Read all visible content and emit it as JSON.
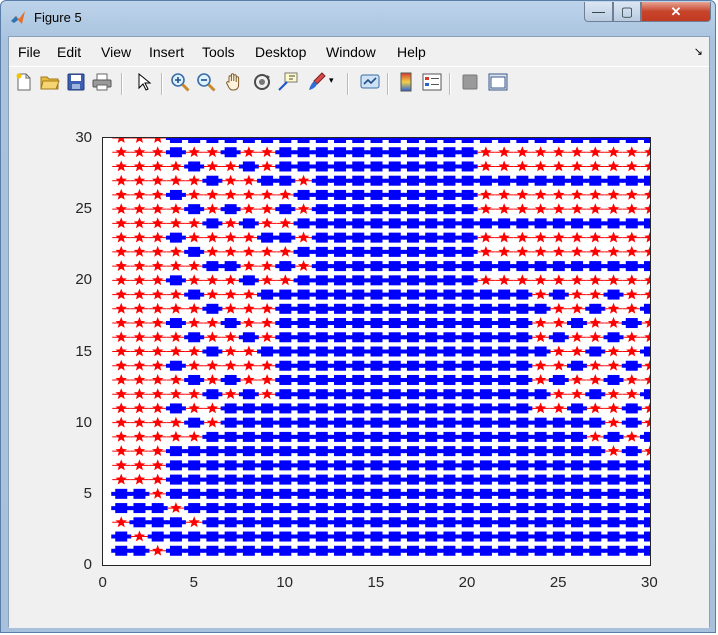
{
  "window": {
    "title": "Figure 5",
    "minimize_label": "—",
    "maximize_label": "▢",
    "close_label": "✕"
  },
  "menu": {
    "items": [
      {
        "label": "File"
      },
      {
        "label": "Edit"
      },
      {
        "label": "View"
      },
      {
        "label": "Insert"
      },
      {
        "label": "Tools"
      },
      {
        "label": "Desktop"
      },
      {
        "label": "Window"
      },
      {
        "label": "Help"
      }
    ],
    "dock_glyph": "↘"
  },
  "toolbar": {
    "buttons": [
      "new-figure-icon",
      "open-file-icon",
      "save-icon",
      "print-icon",
      "arrow-pointer-icon",
      "zoom-in-icon",
      "zoom-out-icon",
      "pan-hand-icon",
      "rotate-3d-icon",
      "data-cursor-icon",
      "brush-icon",
      "link-plot-icon",
      "colorbar-icon",
      "legend-icon",
      "hide-plot-tools-icon",
      "show-plot-tools-icon"
    ]
  },
  "chart_data": {
    "type": "scatter",
    "xlim": [
      0,
      30
    ],
    "ylim": [
      0,
      30
    ],
    "x_ticks": [
      "0",
      "5",
      "10",
      "15",
      "20",
      "25",
      "30"
    ],
    "y_ticks": [
      "0",
      "5",
      "10",
      "15",
      "20",
      "25",
      "30"
    ],
    "grid": false,
    "series": [
      {
        "marker": "star",
        "color": "#ff0000",
        "region": "points with value 0 on a 1..30 integer lattice (left and upper-right zones)"
      },
      {
        "marker": "square",
        "color": "#0000ff",
        "region": "points with value 1 on a 1..30 integer lattice (center and bottom)"
      }
    ],
    "grid_points": {
      "x_from": 1,
      "x_to": 30,
      "y_from": 1,
      "y_to": 30,
      "step": 1
    }
  }
}
